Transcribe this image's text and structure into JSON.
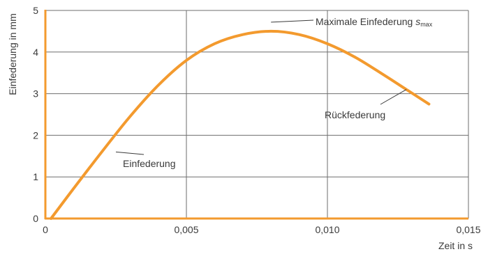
{
  "chart_data": {
    "type": "line",
    "title": "",
    "xlabel": "Zeit in s",
    "ylabel": "Einfederung in mm",
    "xlim": [
      0,
      0.015
    ],
    "ylim": [
      0,
      5
    ],
    "x_ticks": [
      0,
      0.005,
      0.01,
      0.015
    ],
    "x_tick_labels": [
      "0",
      "0,005",
      "0,010",
      "0,015"
    ],
    "y_ticks": [
      0,
      1,
      2,
      3,
      4,
      5
    ],
    "y_tick_labels": [
      "0",
      "1",
      "2",
      "3",
      "4",
      "5"
    ],
    "grid": true,
    "legend": "none",
    "colors": {
      "series": "#f39a2e",
      "axis": "#f39a2e",
      "grid": "#6e6e6e",
      "text": "#3a3a3a"
    },
    "series": [
      {
        "x": [
          0.0002,
          0.001,
          0.002,
          0.003,
          0.004,
          0.005,
          0.006,
          0.007,
          0.008,
          0.009,
          0.01,
          0.011,
          0.012,
          0.0128,
          0.0136
        ],
        "y": [
          0.0,
          0.72,
          1.6,
          2.45,
          3.2,
          3.8,
          4.2,
          4.42,
          4.5,
          4.42,
          4.2,
          3.87,
          3.45,
          3.1,
          2.75
        ]
      }
    ],
    "annotations": [
      {
        "text": "Maximale Einfederung ",
        "var": "s",
        "sub": "max",
        "x": 0.008,
        "y": 4.5
      },
      {
        "text": "Rückfederung",
        "x": 0.0128,
        "y": 3.1
      },
      {
        "text": "Einfederung",
        "x": 0.0025,
        "y": 1.6
      }
    ]
  }
}
